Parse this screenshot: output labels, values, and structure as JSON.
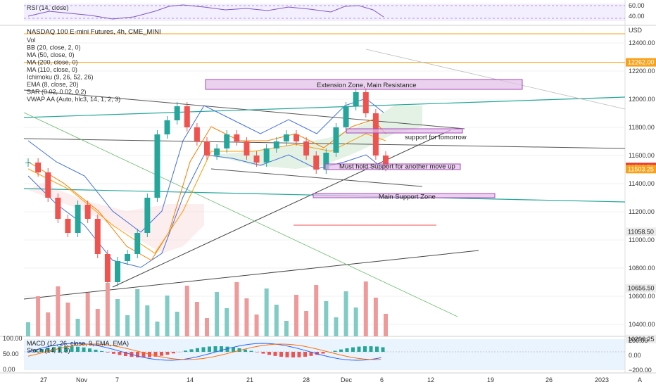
{
  "header": {
    "symbol_title": "NASDAQ 100 E-mini Futures, 4h, CME_MINI",
    "currency": "USD"
  },
  "indicators": [
    "Vol",
    "BB (20, close, 2, 0)",
    "MA (50, close, 0)",
    "MA (200, close, 0)",
    "MA (110, close, 0)",
    "Ichimoku (9, 26, 52, 26)",
    "EMA (8, close, 20)",
    "SAR (0.02, 0.02, 0.2)",
    "VWAP AA (Auto, hlc3, 14, 1, 2, 3)"
  ],
  "rsi_pane": {
    "label": "RSI (14, close)",
    "axis": [
      "60.00",
      "40.00"
    ]
  },
  "macd_pane": {
    "labels": [
      "MACD (12, 26, close, 9, EMA, EMA)",
      "Stoch (14, 1, 3)"
    ],
    "left_axis": [
      "100.00",
      "50.00",
      "0.00"
    ],
    "right_axis": [
      "200.00",
      "0.00",
      "−200.00"
    ]
  },
  "price_axis": [
    "12400.00",
    "12200.00",
    "12000.00",
    "11800.00",
    "11600.00",
    "11400.00",
    "11200.00",
    "11000.00",
    "10800.00",
    "10600.00",
    "10400.00"
  ],
  "price_tags": [
    {
      "text": "12262.00",
      "price": 12262.0,
      "bg": "#f7a21b",
      "fg": "#ffffff"
    },
    {
      "text": "11518.50",
      "price": 11518.5,
      "bg": "#e53935",
      "fg": "#ffffff"
    },
    {
      "text": "11503.25",
      "price": 11503.25,
      "bg": "#f7a21b",
      "fg": "#ffffff"
    },
    {
      "text": "11058.50",
      "price": 11058.5,
      "bg": "#ececec",
      "fg": "#222222"
    },
    {
      "text": "10656.50",
      "price": 10656.5,
      "bg": "#ececec",
      "fg": "#222222"
    },
    {
      "text": "10296.25",
      "price": 10296.25,
      "bg": "#ececec",
      "fg": "#222222"
    }
  ],
  "time_axis": [
    "27",
    "Nov",
    "7",
    "14",
    "21",
    "28",
    "Dec",
    "6",
    "12",
    "19",
    "26",
    "2023"
  ],
  "annotations": [
    {
      "text": "Extension Zone, Main Resistance",
      "price": 12105
    },
    {
      "text": "support for tomorrow",
      "price": 11735
    },
    {
      "text": "Must hold Support for another move up",
      "price": 11527
    },
    {
      "text": "Main Support Zone",
      "price": 11313
    }
  ],
  "chart_data": {
    "type": "candlestick",
    "title": "NASDAQ 100 E-mini Futures, 4h, CME_MINI",
    "currency": "USD",
    "x_tick_labels": [
      "27",
      "Nov",
      "7",
      "14",
      "21",
      "28",
      "Dec",
      "6",
      "12",
      "19",
      "26",
      "2023"
    ],
    "y_range": [
      10250,
      12550
    ],
    "horizontal_levels": [
      12262.0,
      11518.5,
      11503.25,
      11058.5,
      10656.5,
      10296.25
    ],
    "zones": [
      {
        "label": "Extension Zone, Main Resistance",
        "low": 12070,
        "high": 12140
      },
      {
        "label": "support for tomorrow",
        "low": 11770,
        "high": 11790
      },
      {
        "label": "Must hold Support for another move up",
        "low": 11500,
        "high": 11540
      },
      {
        "label": "Main Support Zone",
        "low": 11300,
        "high": 11330
      }
    ],
    "close_series_approx": [
      11550,
      11480,
      11300,
      11150,
      11050,
      11250,
      11150,
      10900,
      10700,
      10850,
      10900,
      11050,
      11300,
      11750,
      11850,
      11950,
      11800,
      11700,
      11600,
      11650,
      11750,
      11700,
      11600,
      11550,
      11650,
      11700,
      11750,
      11700,
      11600,
      11500,
      11620,
      11800,
      11950,
      12050,
      11900,
      11600,
      11518.5
    ]
  }
}
